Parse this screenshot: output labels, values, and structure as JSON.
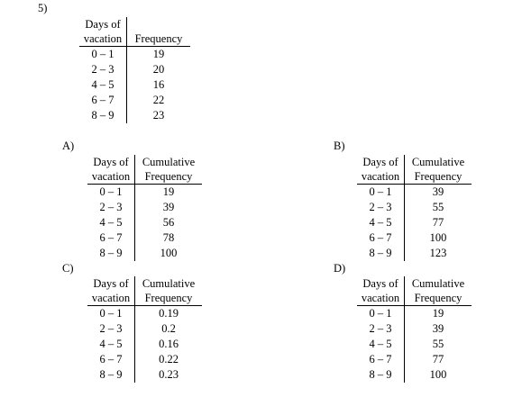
{
  "question_number": "5)",
  "original": {
    "header_line1": [
      "Days of",
      ""
    ],
    "header_line2": [
      "vacation",
      "Frequency"
    ],
    "rows": [
      [
        "0 – 1",
        "19"
      ],
      [
        "2 – 3",
        "20"
      ],
      [
        "4 – 5",
        "16"
      ],
      [
        "6 – 7",
        "22"
      ],
      [
        "8 – 9",
        "23"
      ]
    ]
  },
  "options": [
    {
      "label": "A)",
      "header_line1": [
        "Days of",
        "Cumulative"
      ],
      "header_line2": [
        "vacation",
        "Frequency"
      ],
      "rows": [
        [
          "0 – 1",
          "19"
        ],
        [
          "2 – 3",
          "39"
        ],
        [
          "4 – 5",
          "56"
        ],
        [
          "6 – 7",
          "78"
        ],
        [
          "8 – 9",
          "100"
        ]
      ]
    },
    {
      "label": "B)",
      "header_line1": [
        "Days of",
        "Cumulative"
      ],
      "header_line2": [
        "vacation",
        "Frequency"
      ],
      "rows": [
        [
          "0 – 1",
          "39"
        ],
        [
          "2 – 3",
          "55"
        ],
        [
          "4 – 5",
          "77"
        ],
        [
          "6 – 7",
          "100"
        ],
        [
          "8 – 9",
          "123"
        ]
      ]
    },
    {
      "label": "C)",
      "header_line1": [
        "Days of",
        "Cumulative"
      ],
      "header_line2": [
        "vacation",
        "Frequency"
      ],
      "rows": [
        [
          "0 – 1",
          "0.19"
        ],
        [
          "2 – 3",
          "0.2"
        ],
        [
          "4 – 5",
          "0.16"
        ],
        [
          "6 – 7",
          "0.22"
        ],
        [
          "8 – 9",
          "0.23"
        ]
      ]
    },
    {
      "label": "D)",
      "header_line1": [
        "Days of",
        "Cumulative"
      ],
      "header_line2": [
        "vacation",
        "Frequency"
      ],
      "rows": [
        [
          "0 – 1",
          "19"
        ],
        [
          "2 – 3",
          "39"
        ],
        [
          "4 – 5",
          "55"
        ],
        [
          "6 – 7",
          "77"
        ],
        [
          "8 – 9",
          "100"
        ]
      ]
    }
  ]
}
